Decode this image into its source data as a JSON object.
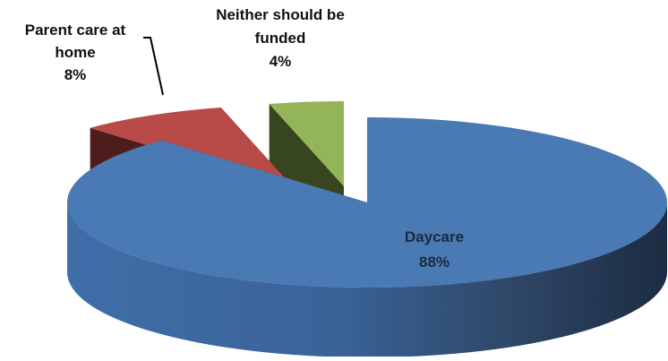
{
  "chart_data": {
    "type": "pie",
    "title": "",
    "legend": "none",
    "three_d": true,
    "exploded": true,
    "slices": [
      {
        "name": "Daycare",
        "value": 88,
        "label": "88%",
        "color": "#4a7ab3",
        "label_color": "#1a2a44"
      },
      {
        "name": "Parent care at home",
        "value": 8,
        "label": "8%",
        "color": "#b84a47",
        "label_color": "#111111"
      },
      {
        "name": "Neither should be funded",
        "value": 4,
        "label": "4%",
        "color": "#94b458",
        "label_color": "#111111"
      }
    ]
  }
}
